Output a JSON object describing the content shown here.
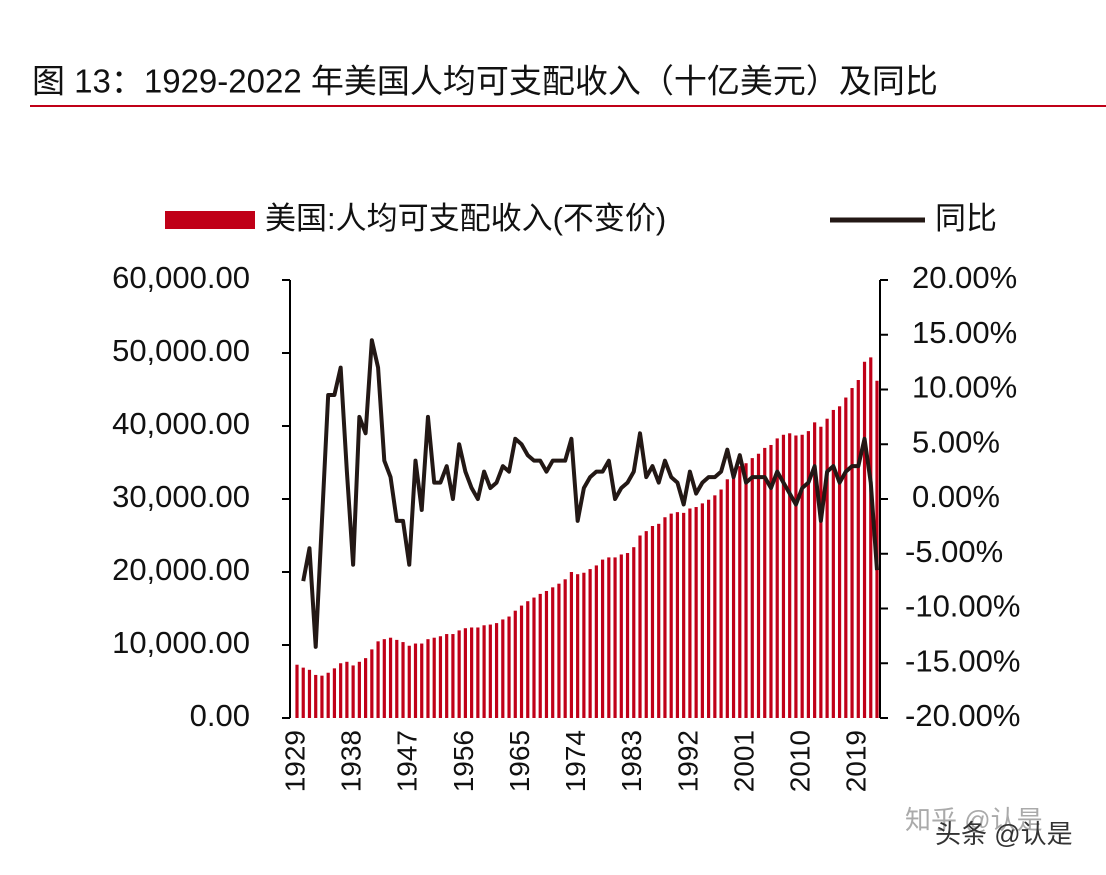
{
  "chart_data": {
    "type": "bar",
    "title": "图 13：1929-2022 年美国人均可支配收入（十亿美元）及同比",
    "x": [
      1929,
      1930,
      1931,
      1932,
      1933,
      1934,
      1935,
      1936,
      1937,
      1938,
      1939,
      1940,
      1941,
      1942,
      1943,
      1944,
      1945,
      1946,
      1947,
      1948,
      1949,
      1950,
      1951,
      1952,
      1953,
      1954,
      1955,
      1956,
      1957,
      1958,
      1959,
      1960,
      1961,
      1962,
      1963,
      1964,
      1965,
      1966,
      1967,
      1968,
      1969,
      1970,
      1971,
      1972,
      1973,
      1974,
      1975,
      1976,
      1977,
      1978,
      1979,
      1980,
      1981,
      1982,
      1983,
      1984,
      1985,
      1986,
      1987,
      1988,
      1989,
      1990,
      1991,
      1992,
      1993,
      1994,
      1995,
      1996,
      1997,
      1998,
      1999,
      2000,
      2001,
      2002,
      2003,
      2004,
      2005,
      2006,
      2007,
      2008,
      2009,
      2010,
      2011,
      2012,
      2013,
      2014,
      2015,
      2016,
      2017,
      2018,
      2019,
      2020,
      2021,
      2022
    ],
    "xlim": [
      1929,
      2022
    ],
    "xticks": [
      1929,
      1938,
      1947,
      1956,
      1965,
      1974,
      1983,
      1992,
      2001,
      2010,
      2019
    ],
    "ylim": [
      0,
      60000
    ],
    "yticks": [
      {
        "value": 0,
        "label": "0.00"
      },
      {
        "value": 10000,
        "label": "10,000.00"
      },
      {
        "value": 20000,
        "label": "20,000.00"
      },
      {
        "value": 30000,
        "label": "30,000.00"
      },
      {
        "value": 40000,
        "label": "40,000.00"
      },
      {
        "value": 50000,
        "label": "50,000.00"
      },
      {
        "value": 60000,
        "label": "60,000.00"
      }
    ],
    "y2lim": [
      -20,
      20
    ],
    "y2ticks": [
      {
        "value": -20,
        "label": "-20.00%"
      },
      {
        "value": -15,
        "label": "-15.00%"
      },
      {
        "value": -10,
        "label": "-10.00%"
      },
      {
        "value": -5,
        "label": "-5.00%"
      },
      {
        "value": 0,
        "label": "0.00%"
      },
      {
        "value": 5,
        "label": "5.00%"
      },
      {
        "value": 10,
        "label": "10.00%"
      },
      {
        "value": 15,
        "label": "15.00%"
      },
      {
        "value": 20,
        "label": "20.00%"
      }
    ],
    "series": [
      {
        "name": "美国:人均可支配收入(不变价)",
        "type": "bar",
        "color": "#c00018",
        "values": [
          7300,
          6900,
          6600,
          5900,
          5800,
          6200,
          6800,
          7500,
          7700,
          7200,
          7700,
          8200,
          9400,
          10500,
          10800,
          11000,
          10700,
          10400,
          9900,
          10200,
          10200,
          10800,
          11000,
          11200,
          11500,
          11500,
          12000,
          12300,
          12400,
          12400,
          12700,
          12800,
          13000,
          13500,
          13900,
          14700,
          15400,
          16000,
          16500,
          17000,
          17400,
          17900,
          18400,
          19000,
          20000,
          19700,
          19900,
          20400,
          20900,
          21700,
          22000,
          22000,
          22400,
          22600,
          23400,
          25000,
          25600,
          26300,
          26600,
          27500,
          28000,
          28200,
          28100,
          28700,
          28900,
          29400,
          29900,
          30500,
          31300,
          32700,
          33300,
          34500,
          34900,
          35600,
          36200,
          37000,
          37400,
          38300,
          38800,
          39000,
          38700,
          38800,
          39300,
          40500,
          39900,
          41000,
          42200,
          42700,
          43900,
          45200,
          46300,
          48800,
          49400,
          46200
        ]
      },
      {
        "name": "同比",
        "type": "line",
        "axis": "y2",
        "color": "#231815",
        "values": [
          null,
          -7.5,
          -4.5,
          -13.5,
          -2,
          9.5,
          9.5,
          12,
          2.5,
          -6,
          7.5,
          6,
          14.5,
          12,
          3.5,
          2,
          -2,
          -2,
          -6,
          3.5,
          -1,
          7.5,
          1.5,
          1.5,
          3,
          0,
          5,
          2.5,
          1,
          0,
          2.5,
          1,
          1.5,
          3,
          2.5,
          5.5,
          5,
          4,
          3.5,
          3.5,
          2.5,
          3.5,
          3.5,
          3.5,
          5.5,
          -2,
          1,
          2,
          2.5,
          2.5,
          3.5,
          0,
          1,
          1.5,
          2.5,
          6,
          2,
          3,
          1.5,
          3.5,
          2,
          1.5,
          -0.5,
          2.5,
          0.5,
          1.5,
          2,
          2,
          2.5,
          4.5,
          2,
          4,
          1.5,
          2,
          2,
          2,
          1,
          2.5,
          1.5,
          0.5,
          -0.5,
          1,
          1.5,
          3,
          -2,
          2.5,
          3,
          1.5,
          2.5,
          3,
          3,
          5.5,
          1.5,
          -6.5
        ]
      }
    ],
    "watermark": [
      "知乎 @认是",
      "头条 @认是"
    ]
  }
}
